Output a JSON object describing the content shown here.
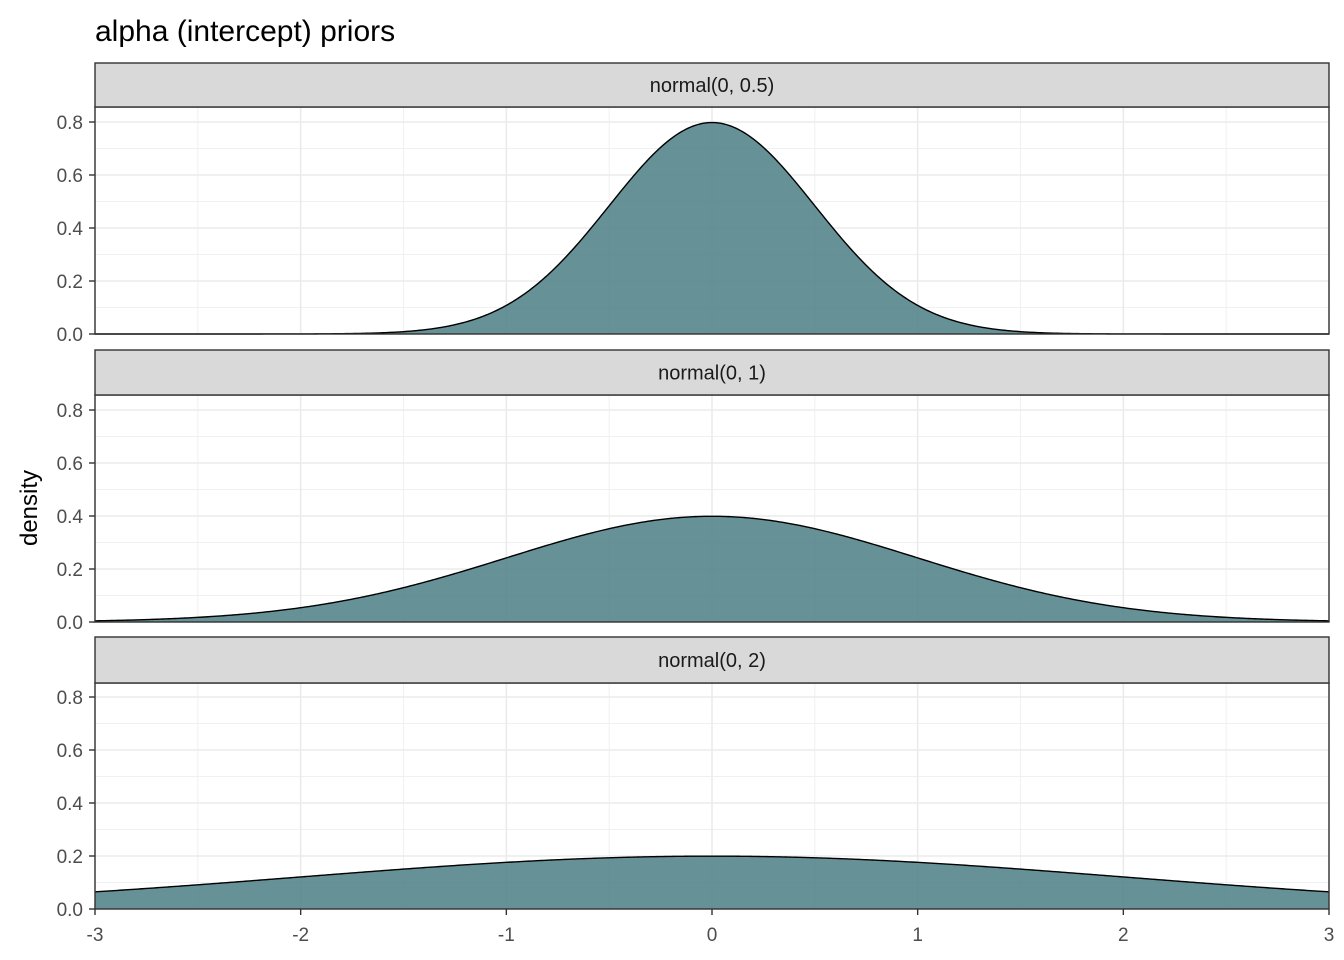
{
  "chart_data": {
    "type": "area",
    "title": "alpha (intercept) priors",
    "xlabel": "",
    "ylabel": "density",
    "xlim": [
      -3,
      3
    ],
    "ylim": [
      0,
      0.8
    ],
    "x_ticks": [
      "-3",
      "-2",
      "-1",
      "0",
      "1",
      "2",
      "3"
    ],
    "y_ticks": [
      "0.0",
      "0.2",
      "0.4",
      "0.6",
      "0.8"
    ],
    "grid": true,
    "legend": "none",
    "fill_color": "#4e8187",
    "line_color": "#000000",
    "strip_fill": "#d9d9d9",
    "x": [
      -3.0,
      -2.5,
      -2.0,
      -1.5,
      -1.25,
      -1.0,
      -0.75,
      -0.5,
      -0.25,
      0.0,
      0.25,
      0.5,
      0.75,
      1.0,
      1.25,
      1.5,
      2.0,
      2.5,
      3.0
    ],
    "panels": [
      {
        "strip": "normal(0, 0.5)",
        "values": [
          0.0,
          0.0,
          0.0003,
          0.0089,
          0.035,
          0.108,
          0.259,
          0.4839,
          0.7041,
          0.7979,
          0.7041,
          0.4839,
          0.259,
          0.108,
          0.035,
          0.0089,
          0.0003,
          0.0,
          0.0
        ]
      },
      {
        "strip": "normal(0, 1)",
        "values": [
          0.0044,
          0.0175,
          0.054,
          0.1295,
          0.1826,
          0.242,
          0.3011,
          0.3521,
          0.3867,
          0.3989,
          0.3867,
          0.3521,
          0.3011,
          0.242,
          0.1826,
          0.1295,
          0.054,
          0.0175,
          0.0044
        ]
      },
      {
        "strip": "normal(0, 2)",
        "values": [
          0.0648,
          0.0913,
          0.121,
          0.1506,
          0.164,
          0.176,
          0.186,
          0.1933,
          0.1979,
          0.1995,
          0.1979,
          0.1933,
          0.186,
          0.176,
          0.164,
          0.1506,
          0.121,
          0.0913,
          0.0648
        ]
      }
    ]
  }
}
